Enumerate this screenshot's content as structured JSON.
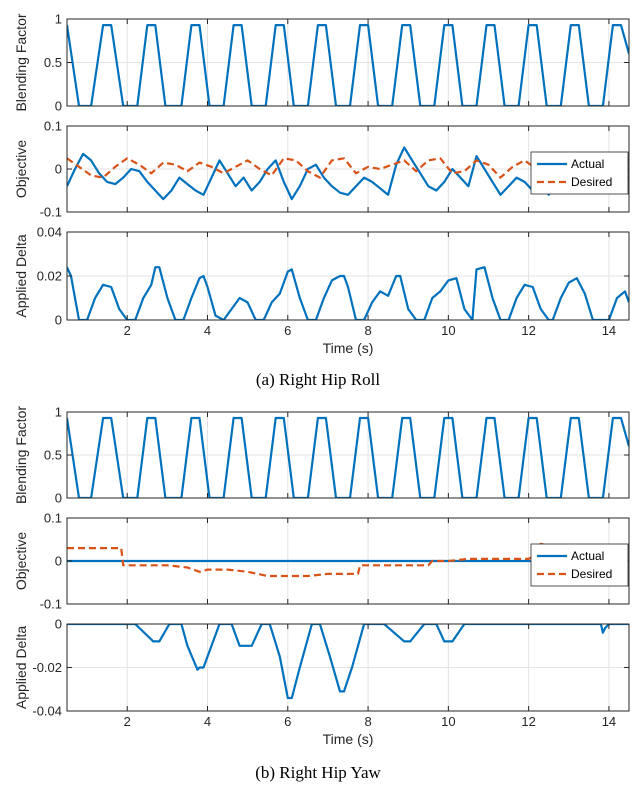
{
  "colors": {
    "actual": "#0072BD",
    "desired": "#D95319",
    "grid": "#e3e3e3",
    "axis": "#262626"
  },
  "captions": [
    "(a) Right Hip Roll",
    "(b) Right Hip Yaw"
  ],
  "chart_data": [
    {
      "type": "line",
      "panel": "a-blending-factor",
      "ylabel": "Blending Factor",
      "xlim": [
        0.5,
        14.5
      ],
      "ylim": [
        0,
        1
      ],
      "xticks": [
        2,
        4,
        6,
        8,
        10,
        12,
        14
      ],
      "xtick_labels": [],
      "yticks": [
        0,
        0.5,
        1
      ],
      "ytick_labels": [
        "0",
        "0.5",
        "1"
      ],
      "grid": true,
      "legend": "none",
      "series": [
        {
          "key": "actual",
          "x": [
            0.5,
            0.8,
            1.1,
            1.4,
            1.6,
            1.9,
            2.25,
            2.5,
            2.7,
            2.95,
            3.35,
            3.6,
            3.8,
            4.05,
            4.4,
            4.65,
            4.85,
            5.1,
            5.45,
            5.7,
            5.9,
            6.15,
            6.5,
            6.75,
            6.95,
            7.2,
            7.55,
            7.8,
            8.0,
            8.25,
            8.6,
            8.85,
            9.05,
            9.3,
            9.65,
            9.9,
            10.1,
            10.35,
            10.7,
            10.95,
            11.15,
            11.4,
            11.75,
            12.0,
            12.2,
            12.45,
            12.8,
            13.05,
            13.25,
            13.5,
            13.85,
            14.1,
            14.3,
            14.5
          ],
          "y": [
            0.93,
            0,
            0,
            0.93,
            0.93,
            0,
            0,
            0.93,
            0.93,
            0,
            0,
            0.93,
            0.93,
            0,
            0,
            0.93,
            0.93,
            0,
            0,
            0.93,
            0.93,
            0,
            0,
            0.93,
            0.93,
            0,
            0,
            0.93,
            0.93,
            0,
            0,
            0.93,
            0.93,
            0,
            0,
            0.93,
            0.93,
            0,
            0,
            0.93,
            0.93,
            0,
            0,
            0.93,
            0.93,
            0,
            0,
            0.93,
            0.93,
            0,
            0,
            0.93,
            0.93,
            0.6
          ]
        }
      ]
    },
    {
      "type": "line",
      "panel": "a-objective",
      "ylabel": "Objective",
      "xlim": [
        0.5,
        14.5
      ],
      "ylim": [
        -0.1,
        0.1
      ],
      "xticks": [
        2,
        4,
        6,
        8,
        10,
        12,
        14
      ],
      "xtick_labels": [],
      "yticks": [
        -0.1,
        0,
        0.1
      ],
      "ytick_labels": [
        "-0.1",
        "0",
        "0.1"
      ],
      "grid": true,
      "legend": "right",
      "series": [
        {
          "key": "actual",
          "name": "Actual",
          "x": [
            0.5,
            0.7,
            0.9,
            1.1,
            1.3,
            1.5,
            1.7,
            1.9,
            2.1,
            2.3,
            2.5,
            2.7,
            2.9,
            3.1,
            3.3,
            3.5,
            3.7,
            3.9,
            4.1,
            4.3,
            4.5,
            4.7,
            4.9,
            5.1,
            5.3,
            5.5,
            5.7,
            5.9,
            6.1,
            6.3,
            6.5,
            6.7,
            6.9,
            7.1,
            7.3,
            7.5,
            7.7,
            7.9,
            8.1,
            8.3,
            8.5,
            8.7,
            8.9,
            9.1,
            9.3,
            9.5,
            9.7,
            9.9,
            10.1,
            10.3,
            10.5,
            10.7,
            10.9,
            11.1,
            11.3,
            11.5,
            11.7,
            11.9,
            12.1,
            12.3,
            12.5,
            12.7,
            12.9,
            13.1,
            13.3,
            13.5,
            13.7,
            13.9,
            14.1,
            14.3,
            14.5
          ],
          "y": [
            -0.04,
            0.0,
            0.035,
            0.02,
            -0.01,
            -0.03,
            -0.035,
            -0.02,
            0.0,
            -0.005,
            -0.03,
            -0.05,
            -0.07,
            -0.05,
            -0.02,
            -0.035,
            -0.05,
            -0.06,
            -0.02,
            0.02,
            -0.01,
            -0.04,
            -0.02,
            -0.05,
            -0.03,
            0.0,
            0.02,
            -0.03,
            -0.07,
            -0.04,
            0.0,
            0.01,
            -0.02,
            -0.04,
            -0.055,
            -0.06,
            -0.04,
            -0.02,
            -0.03,
            -0.045,
            -0.06,
            0.01,
            0.05,
            0.02,
            -0.01,
            -0.04,
            -0.05,
            -0.03,
            0.0,
            -0.02,
            -0.04,
            0.03,
            0.0,
            -0.03,
            -0.06,
            -0.04,
            -0.02,
            -0.03,
            -0.05,
            -0.01,
            -0.06,
            -0.03,
            0.0,
            0.02,
            0.03,
            0.0,
            -0.02,
            -0.04,
            0.02,
            -0.01,
            -0.02
          ]
        },
        {
          "key": "desired",
          "name": "Desired",
          "x": [
            0.5,
            0.8,
            1.1,
            1.4,
            1.7,
            2.0,
            2.3,
            2.6,
            2.9,
            3.2,
            3.5,
            3.8,
            4.1,
            4.4,
            4.7,
            5.0,
            5.3,
            5.6,
            5.9,
            6.2,
            6.5,
            6.8,
            7.1,
            7.4,
            7.7,
            8.0,
            8.3,
            8.6,
            8.9,
            9.2,
            9.5,
            9.8,
            10.1,
            10.4,
            10.7,
            11.0,
            11.3,
            11.6,
            11.9,
            12.2,
            12.5,
            12.8,
            13.1,
            13.4,
            13.7,
            14.0,
            14.3,
            14.5
          ],
          "y": [
            0.025,
            0.005,
            -0.015,
            -0.02,
            0.005,
            0.025,
            0.01,
            -0.01,
            0.015,
            0.01,
            -0.005,
            0.015,
            0.005,
            -0.01,
            0.005,
            0.02,
            0.0,
            -0.015,
            0.025,
            0.02,
            -0.005,
            -0.02,
            0.02,
            0.025,
            -0.01,
            0.005,
            0.0,
            0.01,
            0.02,
            -0.005,
            0.02,
            0.025,
            -0.01,
            -0.005,
            0.02,
            0.01,
            -0.02,
            0.005,
            0.02,
            0.0,
            -0.02,
            0.005,
            0.025,
            0.02,
            0.015,
            0.015,
            0.025,
            0.02
          ]
        }
      ]
    },
    {
      "type": "line",
      "panel": "a-applied-delta",
      "ylabel": "Applied Delta",
      "xlabel": "Time (s)",
      "xlim": [
        0.5,
        14.5
      ],
      "ylim": [
        0,
        0.04
      ],
      "xticks": [
        2,
        4,
        6,
        8,
        10,
        12,
        14
      ],
      "xtick_labels": [
        "2",
        "4",
        "6",
        "8",
        "10",
        "12",
        "14"
      ],
      "yticks": [
        0,
        0.02,
        0.04
      ],
      "ytick_labels": [
        "0",
        "0.02",
        "0.04"
      ],
      "grid": true,
      "legend": "none",
      "series": [
        {
          "key": "actual",
          "x": [
            0.5,
            0.6,
            0.8,
            1.0,
            1.2,
            1.4,
            1.6,
            1.8,
            2.0,
            2.2,
            2.4,
            2.6,
            2.7,
            2.8,
            3.0,
            3.2,
            3.4,
            3.6,
            3.8,
            3.9,
            4.0,
            4.2,
            4.4,
            4.6,
            4.8,
            5.0,
            5.2,
            5.4,
            5.6,
            5.8,
            6.0,
            6.1,
            6.3,
            6.5,
            6.7,
            6.9,
            7.1,
            7.3,
            7.4,
            7.5,
            7.7,
            7.9,
            8.1,
            8.3,
            8.5,
            8.7,
            8.8,
            9.0,
            9.2,
            9.4,
            9.6,
            9.8,
            10.0,
            10.2,
            10.4,
            10.6,
            10.7,
            10.9,
            11.1,
            11.3,
            11.5,
            11.7,
            11.9,
            12.1,
            12.3,
            12.5,
            12.6,
            12.8,
            13.0,
            13.2,
            13.4,
            13.6,
            13.8,
            14.0,
            14.2,
            14.4,
            14.5
          ],
          "y": [
            0.024,
            0.02,
            0.0,
            0.0,
            0.01,
            0.016,
            0.015,
            0.005,
            0.0,
            0.0,
            0.01,
            0.016,
            0.024,
            0.024,
            0.01,
            0.0,
            0.0,
            0.01,
            0.019,
            0.02,
            0.015,
            0.002,
            0.0,
            0.005,
            0.01,
            0.008,
            0.0,
            0.0,
            0.008,
            0.012,
            0.022,
            0.023,
            0.01,
            0.0,
            0.0,
            0.01,
            0.018,
            0.02,
            0.02,
            0.015,
            0.0,
            0.0,
            0.008,
            0.013,
            0.011,
            0.02,
            0.02,
            0.005,
            0.0,
            0.0,
            0.01,
            0.013,
            0.018,
            0.019,
            0.005,
            0.0,
            0.023,
            0.024,
            0.01,
            0.0,
            0.0,
            0.01,
            0.016,
            0.015,
            0.005,
            0.0,
            0.0,
            0.01,
            0.017,
            0.019,
            0.012,
            0.0,
            0.0,
            0.0,
            0.01,
            0.013,
            0.008
          ]
        }
      ]
    },
    {
      "type": "line",
      "panel": "b-blending-factor",
      "ylabel": "Blending Factor",
      "xlim": [
        0.5,
        14.5
      ],
      "ylim": [
        0,
        1
      ],
      "xticks": [
        2,
        4,
        6,
        8,
        10,
        12,
        14
      ],
      "xtick_labels": [],
      "yticks": [
        0,
        0.5,
        1
      ],
      "ytick_labels": [
        "0",
        "0.5",
        "1"
      ],
      "grid": true,
      "legend": "none",
      "series": [
        {
          "key": "actual",
          "x": [
            0.5,
            0.8,
            1.1,
            1.4,
            1.6,
            1.9,
            2.25,
            2.5,
            2.7,
            2.95,
            3.35,
            3.6,
            3.8,
            4.05,
            4.4,
            4.65,
            4.85,
            5.1,
            5.45,
            5.7,
            5.9,
            6.15,
            6.5,
            6.75,
            6.95,
            7.2,
            7.55,
            7.8,
            8.0,
            8.25,
            8.6,
            8.85,
            9.05,
            9.3,
            9.65,
            9.9,
            10.1,
            10.35,
            10.7,
            10.95,
            11.15,
            11.4,
            11.75,
            12.0,
            12.2,
            12.45,
            12.8,
            13.05,
            13.25,
            13.5,
            13.85,
            14.1,
            14.3,
            14.5
          ],
          "y": [
            0.93,
            0,
            0,
            0.93,
            0.93,
            0,
            0,
            0.93,
            0.93,
            0,
            0,
            0.93,
            0.93,
            0,
            0,
            0.93,
            0.93,
            0,
            0,
            0.93,
            0.93,
            0,
            0,
            0.93,
            0.93,
            0,
            0,
            0.93,
            0.93,
            0,
            0,
            0.93,
            0.93,
            0,
            0,
            0.93,
            0.93,
            0,
            0,
            0.93,
            0.93,
            0,
            0,
            0.93,
            0.93,
            0,
            0,
            0.93,
            0.93,
            0,
            0,
            0.93,
            0.93,
            0.6
          ]
        }
      ]
    },
    {
      "type": "line",
      "panel": "b-objective",
      "ylabel": "Objective",
      "xlim": [
        0.5,
        14.5
      ],
      "ylim": [
        -0.1,
        0.1
      ],
      "xticks": [
        2,
        4,
        6,
        8,
        10,
        12,
        14
      ],
      "xtick_labels": [],
      "yticks": [
        -0.1,
        0,
        0.1
      ],
      "ytick_labels": [
        "-0.1",
        "0",
        "0.1"
      ],
      "grid": true,
      "legend": "right",
      "series": [
        {
          "key": "actual",
          "name": "Actual",
          "x": [
            0.5,
            14.5
          ],
          "y": [
            0,
            0
          ]
        },
        {
          "key": "desired",
          "name": "Desired",
          "x": [
            0.5,
            1.0,
            1.5,
            1.85,
            1.9,
            2.1,
            2.5,
            3.0,
            3.5,
            3.8,
            4.0,
            4.5,
            5.0,
            5.5,
            6.0,
            6.5,
            7.0,
            7.5,
            7.75,
            7.8,
            8.0,
            8.5,
            9.0,
            9.5,
            9.6,
            10.0,
            10.5,
            11.0,
            11.5,
            12.0,
            12.1,
            12.3,
            12.5,
            12.7,
            13.0
          ],
          "y": [
            0.03,
            0.03,
            0.03,
            0.03,
            -0.01,
            -0.01,
            -0.01,
            -0.01,
            -0.015,
            -0.025,
            -0.02,
            -0.02,
            -0.025,
            -0.035,
            -0.035,
            -0.035,
            -0.03,
            -0.03,
            -0.03,
            -0.01,
            -0.01,
            -0.01,
            -0.01,
            -0.01,
            0.0,
            0.0,
            0.005,
            0.005,
            0.005,
            0.005,
            0.01,
            0.04,
            0.035,
            0.02,
            0.02
          ]
        }
      ]
    },
    {
      "type": "line",
      "panel": "b-applied-delta",
      "ylabel": "Applied Delta",
      "xlabel": "Time (s)",
      "xlim": [
        0.5,
        14.5
      ],
      "ylim": [
        -0.04,
        0
      ],
      "xticks": [
        2,
        4,
        6,
        8,
        10,
        12,
        14
      ],
      "xtick_labels": [
        "2",
        "4",
        "6",
        "8",
        "10",
        "12",
        "14"
      ],
      "yticks": [
        -0.04,
        -0.02,
        0
      ],
      "ytick_labels": [
        "-0.04",
        "-0.02",
        "0"
      ],
      "grid": true,
      "legend": "none",
      "series": [
        {
          "key": "actual",
          "x": [
            0.5,
            2.2,
            2.65,
            2.8,
            3.05,
            3.2,
            3.35,
            3.5,
            3.75,
            3.8,
            3.9,
            4.1,
            4.3,
            4.6,
            4.8,
            5.1,
            5.35,
            5.55,
            5.8,
            6.0,
            6.1,
            6.3,
            6.6,
            6.8,
            7.05,
            7.3,
            7.4,
            7.6,
            7.9,
            8.4,
            8.9,
            9.05,
            9.4,
            9.7,
            9.9,
            10.1,
            10.4,
            13.8,
            13.85,
            13.9,
            14.0,
            14.5
          ],
          "y": [
            0,
            0,
            -0.008,
            -0.008,
            0,
            0,
            0,
            -0.01,
            -0.021,
            -0.02,
            -0.02,
            -0.01,
            0,
            0,
            -0.01,
            -0.01,
            0,
            0,
            -0.015,
            -0.034,
            -0.034,
            -0.02,
            0,
            0,
            -0.015,
            -0.031,
            -0.031,
            -0.02,
            0,
            0,
            -0.008,
            -0.008,
            0,
            0,
            -0.008,
            -0.008,
            0,
            0,
            -0.004,
            -0.002,
            0,
            0
          ]
        }
      ]
    }
  ]
}
